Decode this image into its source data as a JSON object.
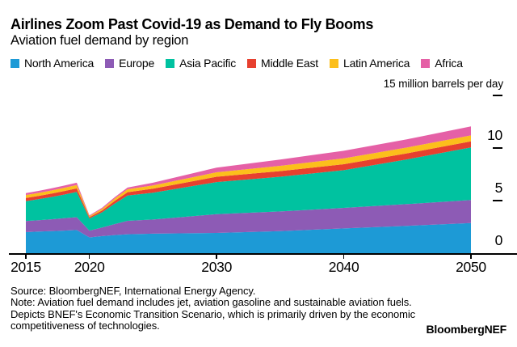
{
  "chart_data": {
    "type": "area",
    "stacked": true,
    "title": "Airlines Zoom Past Covid-19 as Demand to Fly Booms",
    "subtitle": "Aviation fuel demand by region",
    "unit_label": "15 million barrels per day",
    "ylabel": "million barrels per day",
    "ylim": [
      0,
      15
    ],
    "grid": false,
    "legend_position": "top",
    "axis_color": "#000000",
    "x": [
      2015,
      2016,
      2017,
      2018,
      2019,
      2020,
      2021,
      2022,
      2023,
      2025,
      2030,
      2035,
      2040,
      2045,
      2050
    ],
    "x_ticks": [
      2015,
      2020,
      2030,
      2040,
      2050
    ],
    "y_dash_values": [
      15,
      10,
      5
    ],
    "y_label_values": [
      10,
      5,
      0
    ],
    "series": [
      {
        "name": "North America",
        "color": "#1d9ad6",
        "values": [
          2.0,
          2.05,
          2.1,
          2.15,
          2.2,
          1.5,
          1.62,
          1.72,
          1.8,
          1.85,
          1.92,
          2.1,
          2.35,
          2.6,
          2.87
        ]
      },
      {
        "name": "Europe",
        "color": "#8d5bb5",
        "values": [
          1.05,
          1.08,
          1.12,
          1.17,
          1.22,
          0.65,
          0.82,
          1.05,
          1.28,
          1.35,
          1.79,
          1.87,
          1.96,
          2.07,
          2.18
        ]
      },
      {
        "name": "Asia Pacific",
        "color": "#00c2a0",
        "values": [
          1.9,
          2.0,
          2.12,
          2.25,
          2.4,
          1.15,
          1.45,
          1.95,
          2.4,
          2.55,
          3.05,
          3.3,
          3.58,
          4.25,
          5.0
        ]
      },
      {
        "name": "Middle East",
        "color": "#e7402f",
        "values": [
          0.3,
          0.31,
          0.32,
          0.33,
          0.34,
          0.12,
          0.18,
          0.26,
          0.32,
          0.38,
          0.51,
          0.54,
          0.57,
          0.58,
          0.59
        ]
      },
      {
        "name": "Latin America",
        "color": "#fcbf1b",
        "values": [
          0.28,
          0.29,
          0.3,
          0.31,
          0.32,
          0.1,
          0.15,
          0.22,
          0.28,
          0.32,
          0.42,
          0.5,
          0.56,
          0.56,
          0.56
        ]
      },
      {
        "name": "Africa",
        "color": "#e560a6",
        "values": [
          0.18,
          0.19,
          0.2,
          0.21,
          0.22,
          0.08,
          0.11,
          0.14,
          0.16,
          0.25,
          0.45,
          0.6,
          0.72,
          0.78,
          0.85
        ]
      }
    ]
  },
  "footer": {
    "source": "Source: BloombergNEF, International Energy Agency.",
    "note": "Note: Aviation fuel demand includes jet, aviation gasoline and sustainable aviation fuels. Depicts BNEF's Economic Transition Scenario, which is primarily driven by the economic competitiveness of technologies.",
    "brand": "BloombergNEF"
  }
}
